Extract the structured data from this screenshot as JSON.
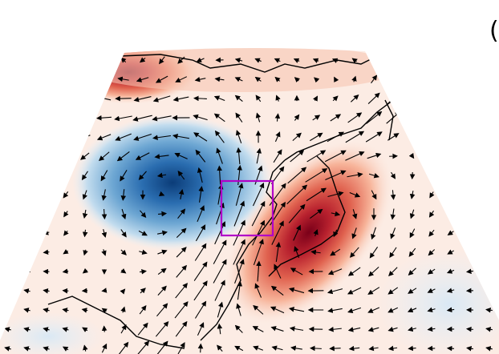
{
  "panel_label": "("
}
